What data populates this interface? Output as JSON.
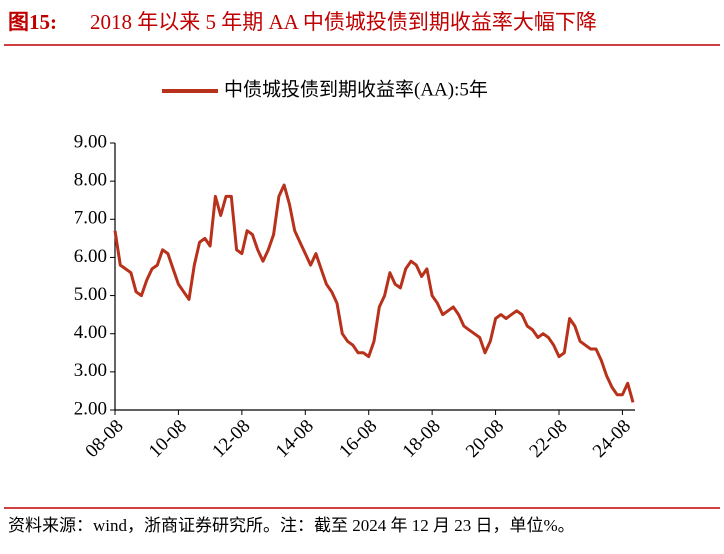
{
  "chart_data": {
    "type": "line",
    "title_label": "图15:",
    "title": "2018 年以来 5 年期 AA 中债城投债到期收益率大幅下降",
    "source": "资料来源：wind，浙商证券研究所。注：截至 2024 年 12 月 23 日，单位%。",
    "x": [
      "2008-08",
      "2008-10",
      "2008-12",
      "2009-02",
      "2009-04",
      "2009-06",
      "2009-08",
      "2009-10",
      "2009-12",
      "2010-02",
      "2010-04",
      "2010-06",
      "2010-08",
      "2010-10",
      "2010-12",
      "2011-02",
      "2011-04",
      "2011-06",
      "2011-08",
      "2011-10",
      "2011-12",
      "2012-02",
      "2012-04",
      "2012-06",
      "2012-08",
      "2012-10",
      "2012-12",
      "2013-02",
      "2013-04",
      "2013-06",
      "2013-08",
      "2013-10",
      "2013-12",
      "2014-02",
      "2014-04",
      "2014-06",
      "2014-08",
      "2014-10",
      "2014-12",
      "2015-02",
      "2015-04",
      "2015-06",
      "2015-08",
      "2015-10",
      "2015-12",
      "2016-02",
      "2016-04",
      "2016-06",
      "2016-08",
      "2016-10",
      "2016-12",
      "2017-02",
      "2017-04",
      "2017-06",
      "2017-08",
      "2017-10",
      "2017-12",
      "2018-02",
      "2018-04",
      "2018-06",
      "2018-08",
      "2018-10",
      "2018-12",
      "2019-02",
      "2019-04",
      "2019-06",
      "2019-08",
      "2019-10",
      "2019-12",
      "2020-02",
      "2020-04",
      "2020-06",
      "2020-08",
      "2020-10",
      "2020-12",
      "2021-02",
      "2021-04",
      "2021-06",
      "2021-08",
      "2021-10",
      "2021-12",
      "2022-02",
      "2022-04",
      "2022-06",
      "2022-08",
      "2022-10",
      "2022-12",
      "2023-02",
      "2023-04",
      "2023-06",
      "2023-08",
      "2023-10",
      "2023-12",
      "2024-02",
      "2024-04",
      "2024-06",
      "2024-08",
      "2024-10",
      "2024-12"
    ],
    "series": [
      {
        "name": "中债城投债到期收益率(AA):5年",
        "color": "#b8311b",
        "values": [
          6.7,
          5.8,
          5.7,
          5.6,
          5.1,
          5.0,
          5.4,
          5.7,
          5.8,
          6.2,
          6.1,
          5.7,
          5.3,
          5.1,
          4.9,
          5.8,
          6.4,
          6.5,
          6.3,
          7.6,
          7.1,
          7.6,
          7.6,
          6.2,
          6.1,
          6.7,
          6.6,
          6.2,
          5.9,
          6.2,
          6.6,
          7.6,
          7.9,
          7.4,
          6.7,
          6.4,
          6.1,
          5.8,
          6.1,
          5.7,
          5.3,
          5.1,
          4.8,
          4.0,
          3.8,
          3.7,
          3.5,
          3.5,
          3.4,
          3.8,
          4.7,
          5.0,
          5.6,
          5.3,
          5.2,
          5.7,
          5.9,
          5.8,
          5.5,
          5.7,
          5.0,
          4.8,
          4.5,
          4.6,
          4.7,
          4.5,
          4.2,
          4.1,
          4.0,
          3.9,
          3.5,
          3.8,
          4.4,
          4.5,
          4.4,
          4.5,
          4.6,
          4.5,
          4.2,
          4.1,
          3.9,
          4.0,
          3.9,
          3.7,
          3.4,
          3.5,
          4.4,
          4.2,
          3.8,
          3.7,
          3.6,
          3.6,
          3.3,
          2.9,
          2.6,
          2.4,
          2.4,
          2.7,
          2.2
        ]
      }
    ],
    "xlim": [
      "2008-08",
      "2024-12"
    ],
    "xticks": [
      {
        "value": "2008-08",
        "label": "08-08"
      },
      {
        "value": "2010-08",
        "label": "10-08"
      },
      {
        "value": "2012-08",
        "label": "12-08"
      },
      {
        "value": "2014-08",
        "label": "14-08"
      },
      {
        "value": "2016-08",
        "label": "16-08"
      },
      {
        "value": "2018-08",
        "label": "18-08"
      },
      {
        "value": "2020-08",
        "label": "20-08"
      },
      {
        "value": "2022-08",
        "label": "22-08"
      },
      {
        "value": "2024-08",
        "label": "24-08"
      }
    ],
    "ylim": [
      2,
      9
    ],
    "yticks": [
      {
        "value": 2,
        "label": "2.00"
      },
      {
        "value": 3,
        "label": "3.00"
      },
      {
        "value": 4,
        "label": "4.00"
      },
      {
        "value": 5,
        "label": "5.00"
      },
      {
        "value": 6,
        "label": "6.00"
      },
      {
        "value": 7,
        "label": "7.00"
      },
      {
        "value": 8,
        "label": "8.00"
      },
      {
        "value": 9,
        "label": "9.00"
      }
    ]
  }
}
